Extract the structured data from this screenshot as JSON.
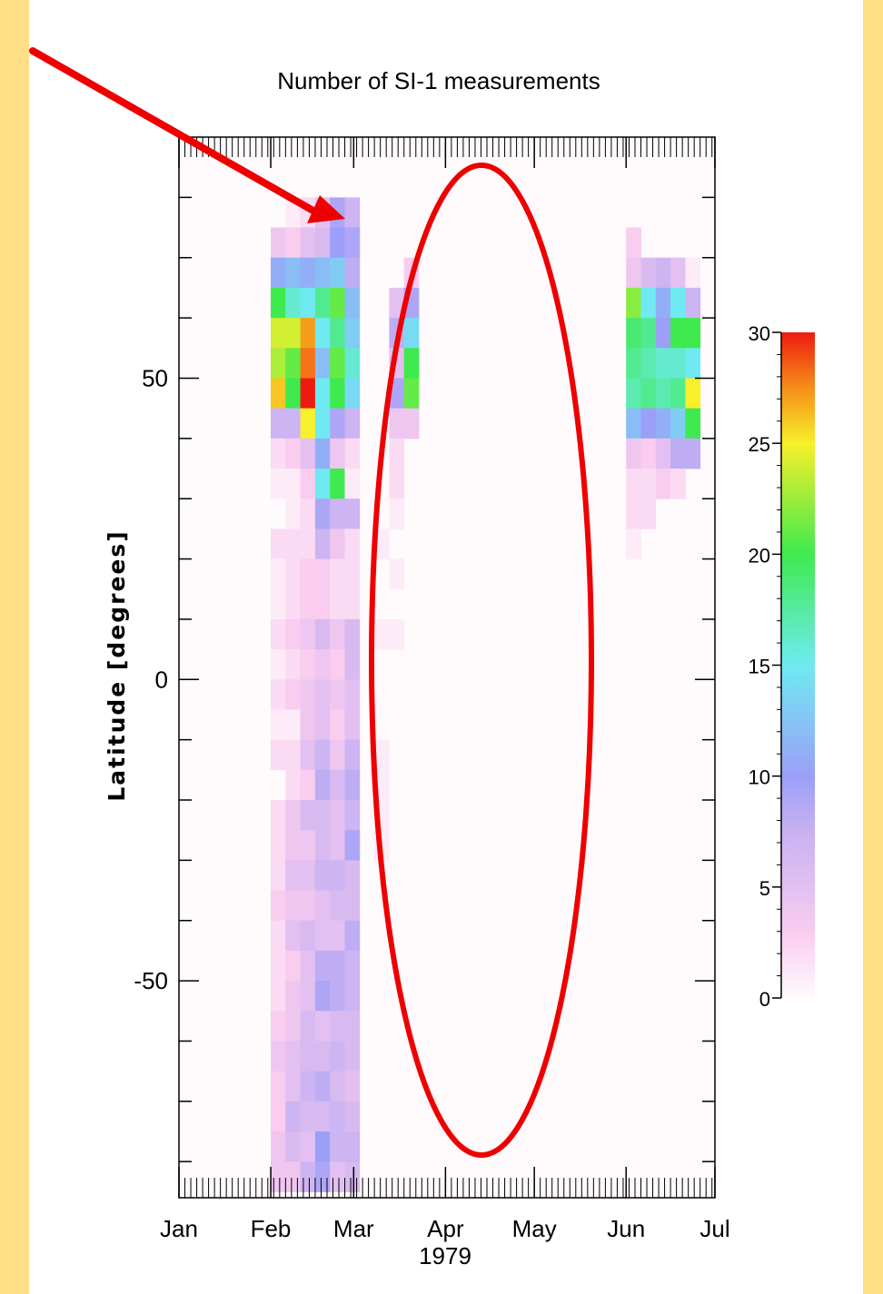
{
  "chart_data": {
    "type": "heatmap",
    "title": "Number of SI-1 measurements",
    "xlabel": "1979",
    "ylabel": "Latitude  [degrees]",
    "x_ticks": [
      "Jan",
      "Feb",
      "Mar",
      "Apr",
      "May",
      "Jun",
      "Jul"
    ],
    "y_ticks": [
      50,
      0,
      -50
    ],
    "ylim": [
      -86,
      90
    ],
    "colorbar": {
      "range": [
        0,
        30
      ],
      "ticks": [
        0,
        5,
        10,
        15,
        20,
        25,
        30
      ]
    },
    "lat_bins_top": [
      80,
      75,
      70,
      65,
      60,
      55,
      50,
      45,
      40,
      35,
      30,
      25,
      20,
      15,
      10,
      5,
      0,
      -5,
      -10,
      -15,
      -20,
      -25,
      -30,
      -35,
      -40,
      -45,
      -50,
      -55,
      -60,
      -65,
      -70,
      -75,
      -80
    ],
    "columns": [
      {
        "day": 31,
        "values": [
          0,
          4,
          11,
          20,
          24,
          23,
          26,
          7,
          2,
          1,
          0,
          2,
          1,
          1,
          2,
          1,
          2,
          1,
          2,
          0,
          2,
          2,
          2,
          3,
          2,
          2,
          2,
          3,
          4,
          3,
          3,
          4,
          4
        ]
      },
      {
        "day": 36,
        "values": [
          1,
          3,
          12,
          16,
          24,
          21,
          20,
          7,
          3,
          1,
          1,
          2,
          2,
          2,
          3,
          2,
          3,
          1,
          2,
          2,
          4,
          4,
          5,
          4,
          5,
          3,
          4,
          4,
          5,
          5,
          7,
          6,
          4
        ]
      },
      {
        "day": 41,
        "values": [
          2,
          5,
          11,
          15,
          27,
          28,
          30,
          25,
          5,
          3,
          2,
          2,
          3,
          3,
          4,
          3,
          4,
          4,
          5,
          3,
          6,
          4,
          5,
          4,
          6,
          5,
          5,
          6,
          6,
          7,
          6,
          5,
          7
        ]
      },
      {
        "day": 46,
        "values": [
          5,
          6,
          12,
          18,
          15,
          12,
          15,
          15,
          11,
          15,
          9,
          7,
          3,
          3,
          6,
          4,
          5,
          5,
          7,
          8,
          6,
          6,
          7,
          5,
          5,
          8,
          9,
          5,
          6,
          8,
          6,
          10,
          9
        ]
      },
      {
        "day": 51,
        "values": [
          9,
          10,
          13,
          21,
          18,
          21,
          20,
          9,
          4,
          20,
          7,
          4,
          2,
          2,
          4,
          3,
          4,
          3,
          4,
          6,
          5,
          5,
          7,
          6,
          5,
          8,
          8,
          6,
          7,
          6,
          7,
          7,
          5
        ]
      },
      {
        "day": 56,
        "values": [
          7,
          9,
          8,
          12,
          13,
          16,
          14,
          7,
          2,
          1,
          7,
          2,
          2,
          2,
          6,
          6,
          5,
          5,
          7,
          8,
          7,
          9,
          6,
          6,
          8,
          7,
          7,
          6,
          6,
          5,
          6,
          7,
          6
        ]
      },
      {
        "day": 61,
        "values": [
          0,
          0,
          0,
          0,
          0,
          0,
          0,
          0,
          0,
          0,
          0,
          0,
          0,
          0,
          0,
          0,
          0,
          0,
          0,
          0,
          0,
          0,
          0,
          0,
          0,
          0,
          0,
          0,
          0,
          0,
          0,
          0,
          0
        ]
      },
      {
        "day": 66,
        "values": [
          0,
          0,
          0,
          0,
          0,
          0,
          0,
          0,
          0,
          0,
          0,
          1,
          0,
          0,
          1,
          0,
          0,
          0,
          1,
          1,
          1,
          1,
          0,
          0,
          0,
          0,
          0,
          0,
          0,
          0,
          0,
          0,
          0
        ]
      },
      {
        "day": 71,
        "values": [
          0,
          0,
          0,
          5,
          8,
          5,
          9,
          4,
          2,
          2,
          1,
          0,
          1,
          0,
          1,
          0,
          0,
          0,
          0,
          0,
          0,
          0,
          0,
          0,
          0,
          0,
          0,
          0,
          0,
          0,
          0,
          0,
          0
        ]
      },
      {
        "day": 76,
        "values": [
          0,
          0,
          3,
          9,
          14,
          20,
          21,
          4,
          0,
          0,
          0,
          0,
          0,
          0,
          0,
          0,
          0,
          0,
          0,
          0,
          0,
          0,
          0,
          0,
          0,
          0,
          0,
          0,
          0,
          0,
          0,
          0,
          0
        ]
      },
      {
        "day": 151,
        "values": [
          0,
          3,
          4,
          22,
          19,
          18,
          17,
          12,
          4,
          2,
          2,
          1,
          0,
          0,
          0,
          0,
          0,
          0,
          0,
          0,
          0,
          0,
          0,
          0,
          0,
          0,
          0,
          0,
          0,
          0,
          0,
          0,
          0
        ]
      },
      {
        "day": 156,
        "values": [
          0,
          0,
          6,
          15,
          18,
          17,
          18,
          10,
          3,
          2,
          2,
          0,
          0,
          0,
          0,
          0,
          0,
          0,
          0,
          0,
          0,
          0,
          0,
          0,
          0,
          0,
          0,
          0,
          0,
          0,
          0,
          0,
          0
        ]
      },
      {
        "day": 161,
        "values": [
          0,
          0,
          7,
          11,
          10,
          16,
          17,
          11,
          5,
          3,
          0,
          0,
          0,
          0,
          0,
          0,
          0,
          0,
          0,
          0,
          0,
          0,
          0,
          0,
          0,
          0,
          0,
          0,
          0,
          0,
          0,
          0,
          0
        ]
      },
      {
        "day": 166,
        "values": [
          0,
          0,
          5,
          15,
          20,
          16,
          18,
          13,
          8,
          2,
          0,
          0,
          0,
          0,
          0,
          0,
          0,
          0,
          0,
          0,
          0,
          0,
          0,
          0,
          0,
          0,
          0,
          0,
          0,
          0,
          0,
          0,
          0
        ]
      },
      {
        "day": 171,
        "values": [
          0,
          0,
          1,
          7,
          20,
          15,
          25,
          20,
          8,
          0,
          0,
          0,
          0,
          0,
          0,
          0,
          0,
          0,
          0,
          0,
          0,
          0,
          0,
          0,
          0,
          0,
          0,
          0,
          0,
          0,
          0,
          0,
          0
        ]
      }
    ]
  },
  "annotations": {
    "arrow_color": "#EE0000",
    "ellipse_color": "#EE0000"
  },
  "colors": {
    "page_border": "#FFDF86",
    "plot_background": "#FFFAFC"
  }
}
